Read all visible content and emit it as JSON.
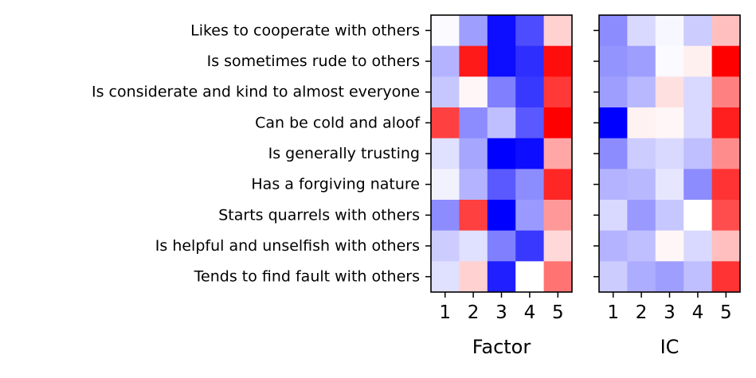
{
  "chart_data": [
    {
      "type": "heatmap",
      "title": "",
      "xlabel": "Factor",
      "ylabel": "",
      "x_categories": [
        "1",
        "2",
        "3",
        "4",
        "5"
      ],
      "y_categories": [
        "Likes to cooperate with others",
        "Is sometimes rude to others",
        "Is considerate and kind to almost everyone",
        "Can be cold and aloof",
        "Is generally trusting",
        "Has a forgiving nature",
        "Starts quarrels with others",
        "Is helpful and unselfish with others",
        "Tends to find fault with others"
      ],
      "values": [
        [
          -0.02,
          -0.38,
          -0.95,
          -0.7,
          0.18
        ],
        [
          -0.3,
          0.9,
          -0.95,
          -0.82,
          0.95
        ],
        [
          -0.22,
          0.03,
          -0.5,
          -0.78,
          0.78
        ],
        [
          0.75,
          -0.45,
          -0.25,
          -0.65,
          1.0
        ],
        [
          -0.12,
          -0.35,
          -1.0,
          -0.95,
          0.35
        ],
        [
          -0.05,
          -0.3,
          -0.65,
          -0.45,
          0.85
        ],
        [
          -0.45,
          0.75,
          -1.0,
          -0.4,
          0.4
        ],
        [
          -0.2,
          -0.12,
          -0.5,
          -0.78,
          0.15
        ],
        [
          -0.12,
          0.18,
          -0.88,
          0.0,
          0.55
        ]
      ],
      "colormap": {
        "low": "#0000ff",
        "mid": "#ffffff",
        "high": "#ff0000"
      },
      "vlim": [
        -1,
        1
      ]
    },
    {
      "type": "heatmap",
      "title": "",
      "xlabel": "IC",
      "ylabel": "",
      "x_categories": [
        "1",
        "2",
        "3",
        "4",
        "5"
      ],
      "y_categories": [],
      "values": [
        [
          -0.45,
          -0.15,
          -0.03,
          -0.2,
          0.25
        ],
        [
          -0.42,
          -0.38,
          -0.02,
          0.06,
          1.0
        ],
        [
          -0.38,
          -0.28,
          0.12,
          -0.15,
          0.5
        ],
        [
          -1.0,
          0.05,
          0.03,
          -0.15,
          0.88
        ],
        [
          -0.45,
          -0.2,
          -0.15,
          -0.25,
          0.45
        ],
        [
          -0.3,
          -0.28,
          -0.1,
          -0.45,
          0.8
        ],
        [
          -0.15,
          -0.4,
          -0.22,
          0.0,
          0.7
        ],
        [
          -0.3,
          -0.25,
          0.03,
          -0.15,
          0.25
        ],
        [
          -0.2,
          -0.32,
          -0.38,
          -0.25,
          0.8
        ]
      ],
      "colormap": {
        "low": "#0000ff",
        "mid": "#ffffff",
        "high": "#ff0000"
      },
      "vlim": [
        -1,
        1
      ]
    }
  ]
}
